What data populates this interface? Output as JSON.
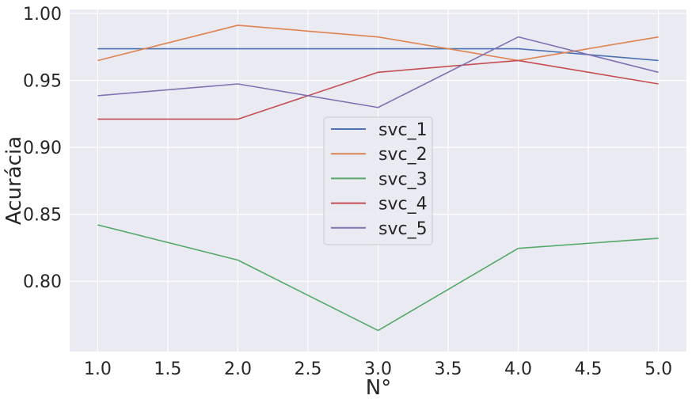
{
  "chart_data": {
    "type": "line",
    "xlabel": "N°",
    "ylabel": "Acurácia",
    "x": [
      1.0,
      2.0,
      3.0,
      4.0,
      5.0
    ],
    "xlim": [
      0.8,
      5.2
    ],
    "ylim": [
      0.7475,
      1.003
    ],
    "xticks": [
      "1.0",
      "1.5",
      "2.0",
      "2.5",
      "3.0",
      "3.5",
      "4.0",
      "4.5",
      "5.0"
    ],
    "xtick_values": [
      1.0,
      1.5,
      2.0,
      2.5,
      3.0,
      3.5,
      4.0,
      4.5,
      5.0
    ],
    "yticks": [
      "0.80",
      "0.85",
      "0.90",
      "0.95",
      "1.00"
    ],
    "ytick_values": [
      0.8,
      0.85,
      0.9,
      0.95,
      1.0
    ],
    "grid": true,
    "legend_position": "center",
    "background": "#eaeaf2",
    "series": [
      {
        "name": "svc_1",
        "color": "#4c72b0",
        "values": [
          0.9737,
          0.9737,
          0.9737,
          0.9737,
          0.9649
        ]
      },
      {
        "name": "svc_2",
        "color": "#dd8452",
        "values": [
          0.9649,
          0.9912,
          0.9825,
          0.9649,
          0.9825
        ]
      },
      {
        "name": "svc_3",
        "color": "#55a868",
        "values": [
          0.8421,
          0.8158,
          0.7632,
          0.8246,
          0.8321
        ]
      },
      {
        "name": "svc_4",
        "color": "#c44e52",
        "values": [
          0.9211,
          0.9211,
          0.9561,
          0.9649,
          0.9474
        ]
      },
      {
        "name": "svc_5",
        "color": "#8172b3",
        "values": [
          0.9386,
          0.9474,
          0.9298,
          0.9825,
          0.9561
        ]
      }
    ]
  }
}
